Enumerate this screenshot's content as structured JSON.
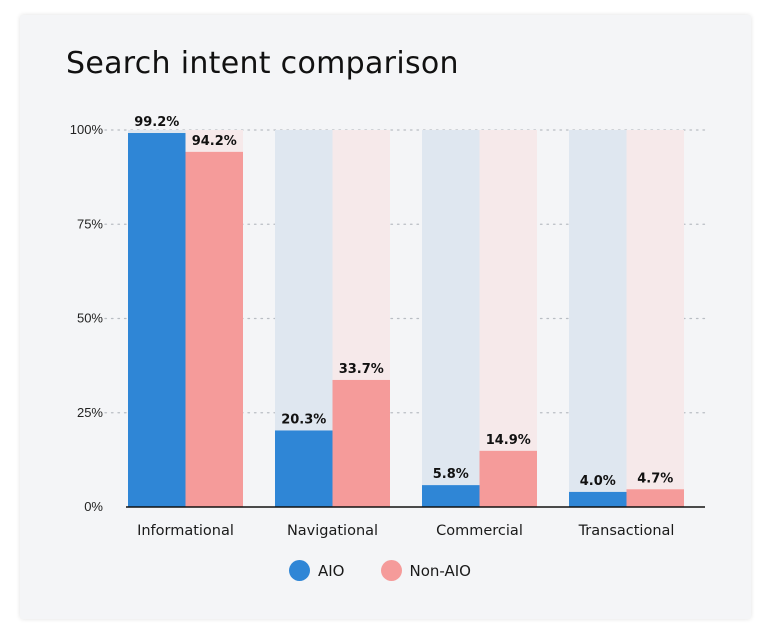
{
  "colors": {
    "aio": "#2f86d6",
    "non_aio": "#f59b9a",
    "aio_track": "#dfe7f0",
    "non_aio_track": "#f6e9ea"
  },
  "chart_data": {
    "type": "bar",
    "title": "Search intent comparison",
    "xlabel": "",
    "ylabel": "",
    "categories": [
      "Informational",
      "Navigational",
      "Commercial",
      "Transactional"
    ],
    "series": [
      {
        "name": "AIO",
        "values": [
          99.2,
          20.3,
          5.8,
          4.0
        ],
        "labels": [
          "99.2%",
          "20.3%",
          "5.8%",
          "4.0%"
        ]
      },
      {
        "name": "Non-AIO",
        "values": [
          94.2,
          33.7,
          14.9,
          4.7
        ],
        "labels": [
          "94.2%",
          "33.7%",
          "14.9%",
          "4.7%"
        ]
      }
    ],
    "ylim": [
      0,
      100
    ],
    "yticks": [
      0,
      25,
      50,
      75,
      100
    ],
    "ytick_labels": [
      "0%",
      "25%",
      "50%",
      "75%",
      "100%"
    ],
    "grid": "horizontal-dotted",
    "legend": "bottom-center"
  }
}
